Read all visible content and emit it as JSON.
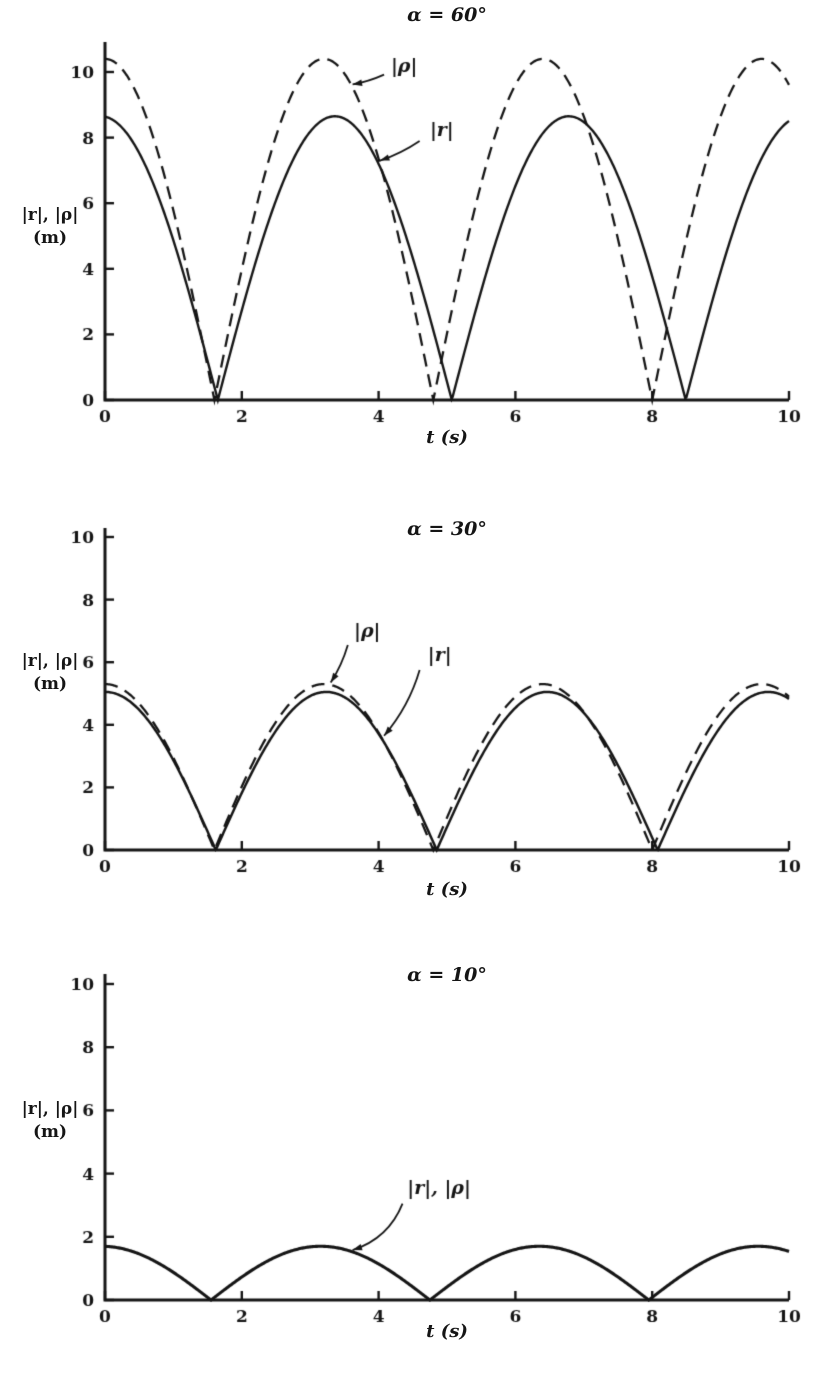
{
  "figure": {
    "background": "#ffffff",
    "ink_color": "#151515"
  },
  "chart_data": [
    {
      "type": "line",
      "title": "α = 60°",
      "xlabel": "t (s)",
      "ylabel_main": "|r|, |ρ|",
      "ylabel_unit": "(m)",
      "xlim": [
        0,
        10
      ],
      "ylim": [
        0,
        10.8
      ],
      "xticks": [
        0,
        2,
        4,
        6,
        8,
        10
      ],
      "yticks": [
        0,
        2,
        4,
        6,
        8,
        10
      ],
      "grid": false,
      "series": [
        {
          "name": "|ρ|",
          "line_style": "dashed",
          "line_width": 2.3,
          "shape": "rectified_sine",
          "amplitude": 10.4,
          "first_zero": 1.6,
          "half_period": 3.2,
          "zeros": [
            1.6,
            4.8,
            8.0
          ],
          "peak_times": [
            3.2,
            6.4,
            9.6
          ],
          "peak_value": 10.4,
          "value_at_t0": 10.4
        },
        {
          "name": "|r|",
          "line_style": "solid",
          "line_width": 2.4,
          "shape": "rectified_sine",
          "amplitude": 8.65,
          "first_zero": 1.65,
          "half_period": 3.42,
          "zeros": [
            1.65,
            5.07,
            8.49
          ],
          "peak_times": [
            3.36,
            6.78
          ],
          "peak_value": 8.65,
          "value_at_t0": 8.6
        }
      ],
      "annotations": [
        {
          "text": "|ρ|",
          "label_xy": [
            4.18,
            10.0
          ],
          "arrow_from": [
            4.08,
            9.92
          ],
          "arrow_to": [
            3.62,
            9.62
          ],
          "bend": 2
        },
        {
          "text": "|r|",
          "label_xy": [
            4.75,
            8.05
          ],
          "arrow_from": [
            4.6,
            7.9
          ],
          "arrow_to": [
            4.02,
            7.3
          ],
          "bend": 3
        }
      ]
    },
    {
      "type": "line",
      "title": "α = 30°",
      "xlabel": "t (s)",
      "ylabel_main": "|r|, |ρ|",
      "ylabel_unit": "(m)",
      "xlim": [
        0,
        10
      ],
      "ylim": [
        0,
        10
      ],
      "xticks": [
        0,
        2,
        4,
        6,
        8,
        10
      ],
      "yticks": [
        0,
        2,
        4,
        6,
        8,
        10
      ],
      "grid": false,
      "series": [
        {
          "name": "|ρ|",
          "line_style": "dashed",
          "line_width": 2.3,
          "shape": "rectified_sine",
          "amplitude": 5.3,
          "first_zero": 1.6,
          "half_period": 3.2,
          "zeros": [
            1.6,
            4.8,
            8.0
          ],
          "peak_times": [
            3.2,
            6.4,
            9.6
          ],
          "peak_value": 5.3,
          "value_at_t0": 5.3
        },
        {
          "name": "|r|",
          "line_style": "solid",
          "line_width": 2.5,
          "shape": "rectified_sine",
          "amplitude": 5.05,
          "first_zero": 1.62,
          "half_period": 3.23,
          "zeros": [
            1.62,
            4.85,
            8.08
          ],
          "peak_times": [
            3.24,
            6.47,
            9.7
          ],
          "peak_value": 5.05,
          "value_at_t0": 5.0
        }
      ],
      "annotations": [
        {
          "text": "|ρ|",
          "label_xy": [
            3.64,
            6.8
          ],
          "arrow_from": [
            3.55,
            6.55
          ],
          "arrow_to": [
            3.3,
            5.35
          ],
          "bend": 3
        },
        {
          "text": "|r|",
          "label_xy": [
            4.72,
            6.05
          ],
          "arrow_from": [
            4.6,
            5.75
          ],
          "arrow_to": [
            4.08,
            3.65
          ],
          "bend": 8
        }
      ]
    },
    {
      "type": "line",
      "title": "α = 10°",
      "xlabel": "t (s)",
      "ylabel_main": "|r|, |ρ|",
      "ylabel_unit": "(m)",
      "xlim": [
        0,
        10
      ],
      "ylim": [
        0,
        10
      ],
      "xticks": [
        0,
        2,
        4,
        6,
        8,
        10
      ],
      "yticks": [
        0,
        2,
        4,
        6,
        8,
        10
      ],
      "grid": false,
      "series": [
        {
          "name": "|r|, |ρ|",
          "line_style": "solid",
          "line_width": 3.1,
          "shape": "rectified_sine",
          "amplitude": 1.7,
          "first_zero": 1.55,
          "half_period": 3.2,
          "zeros": [
            1.55,
            4.75,
            7.95
          ],
          "peak_times": [
            3.15,
            6.35,
            9.55
          ],
          "peak_value": 1.7,
          "value_at_t0": 1.7
        }
      ],
      "annotations": [
        {
          "text": "|r|, |ρ|",
          "label_xy": [
            4.42,
            3.35
          ],
          "arrow_from": [
            4.35,
            3.05
          ],
          "arrow_to": [
            3.62,
            1.58
          ],
          "bend": 16
        }
      ]
    }
  ]
}
